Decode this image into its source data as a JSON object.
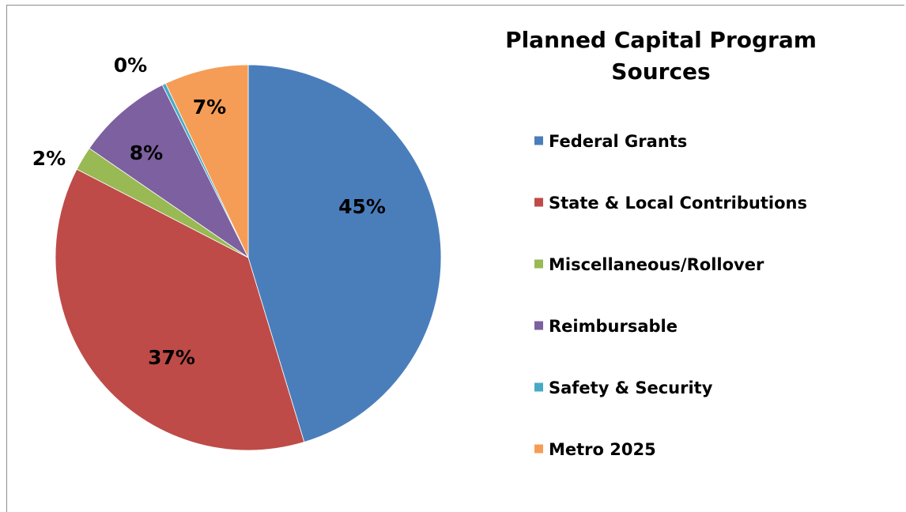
{
  "chart_data": {
    "type": "pie",
    "title": "Planned Capital Program Sources",
    "title_lines": [
      "Planned Capital Program",
      "Sources"
    ],
    "legend_position": "right",
    "series": [
      {
        "name": "Federal Grants",
        "value": 45,
        "label": "45%",
        "color": "#4A7EBB"
      },
      {
        "name": "State & Local Contributions",
        "value": 37,
        "label": "37%",
        "color": "#BE4B48"
      },
      {
        "name": "Miscellaneous/Rollover",
        "value": 2,
        "label": "2%",
        "color": "#98B954"
      },
      {
        "name": "Reimbursable",
        "value": 8,
        "label": "8%",
        "color": "#7D60A0"
      },
      {
        "name": "Safety & Security",
        "value": 0.3,
        "label": "0%",
        "color": "#46AAC5"
      },
      {
        "name": "Metro 2025",
        "value": 7,
        "label": "7%",
        "color": "#F59D56"
      }
    ]
  }
}
